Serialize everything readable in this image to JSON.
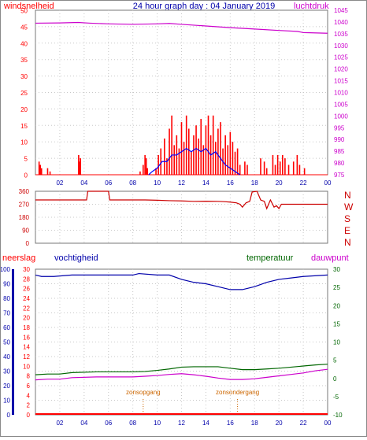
{
  "title": "24 hour graph day : 04 January 2019",
  "colors": {
    "wind": "#ff0000",
    "wind_gust": "#0000ff",
    "pressure": "#cc00cc",
    "direction": "#cc0000",
    "rain": "#ff0000",
    "humidity": "#0000aa",
    "temperature": "#006600",
    "dewpoint": "#cc00cc",
    "event": "#cc6600",
    "grid": "#c8c8c8"
  },
  "chart_data": [
    {
      "type": "bar",
      "title": "24 hour graph day : 04 January 2019",
      "ylabel_left": "windsnelheid",
      "ylabel_right": "luchtdruk",
      "xlim": [
        0,
        24
      ],
      "ylim_left": [
        0,
        50
      ],
      "ylim_right": [
        975,
        1045
      ],
      "x_ticks": [
        "02",
        "04",
        "06",
        "08",
        "10",
        "12",
        "14",
        "16",
        "18",
        "20",
        "22",
        "00"
      ],
      "y_ticks_left": [
        "0",
        "5",
        "10",
        "15",
        "20",
        "25",
        "30",
        "35",
        "40",
        "45",
        "50"
      ],
      "y_ticks_right": [
        "975",
        "980",
        "985",
        "990",
        "995",
        "1000",
        "1005",
        "1010",
        "1015",
        "1020",
        "1025",
        "1030",
        "1035",
        "1040",
        "1045"
      ],
      "series": [
        {
          "role": "windsnelheid",
          "kind": "bars",
          "points": [
            [
              0.3,
              4
            ],
            [
              0.4,
              3
            ],
            [
              0.5,
              2
            ],
            [
              1.0,
              2
            ],
            [
              1.2,
              1
            ],
            [
              3.55,
              6
            ],
            [
              3.6,
              4
            ],
            [
              3.65,
              2
            ],
            [
              3.7,
              5
            ],
            [
              8.6,
              1
            ],
            [
              8.85,
              3
            ],
            [
              9.0,
              6
            ],
            [
              9.1,
              5
            ],
            [
              9.2,
              2
            ],
            [
              9.9,
              2
            ],
            [
              10.1,
              6
            ],
            [
              10.3,
              8
            ],
            [
              10.6,
              11
            ],
            [
              10.8,
              5
            ],
            [
              11.0,
              14
            ],
            [
              11.2,
              18
            ],
            [
              11.4,
              9
            ],
            [
              11.6,
              12
            ],
            [
              11.8,
              8
            ],
            [
              12.0,
              16
            ],
            [
              12.2,
              10
            ],
            [
              12.4,
              18
            ],
            [
              12.6,
              14
            ],
            [
              12.8,
              7
            ],
            [
              13.0,
              12
            ],
            [
              13.2,
              15
            ],
            [
              13.4,
              11
            ],
            [
              13.6,
              17
            ],
            [
              13.8,
              9
            ],
            [
              14.0,
              15
            ],
            [
              14.2,
              18
            ],
            [
              14.4,
              12
            ],
            [
              14.6,
              18
            ],
            [
              14.8,
              10
            ],
            [
              15.0,
              14
            ],
            [
              15.2,
              16
            ],
            [
              15.4,
              8
            ],
            [
              15.6,
              12
            ],
            [
              15.8,
              9
            ],
            [
              16.0,
              13
            ],
            [
              16.2,
              10
            ],
            [
              16.4,
              7
            ],
            [
              16.6,
              8
            ],
            [
              16.8,
              3
            ],
            [
              17.2,
              4
            ],
            [
              17.4,
              3
            ],
            [
              18.5,
              5
            ],
            [
              18.8,
              4
            ],
            [
              19.0,
              2
            ],
            [
              19.5,
              6
            ],
            [
              19.7,
              3
            ],
            [
              19.9,
              6
            ],
            [
              20.1,
              4
            ],
            [
              20.3,
              6
            ],
            [
              20.5,
              5
            ],
            [
              20.8,
              3
            ],
            [
              21.2,
              4
            ],
            [
              21.5,
              6
            ],
            [
              21.7,
              3
            ],
            [
              22.1,
              2
            ]
          ]
        },
        {
          "role": "windstoot",
          "kind": "line",
          "points": [
            [
              9.3,
              0
            ],
            [
              9.6,
              1
            ],
            [
              10.0,
              2
            ],
            [
              10.4,
              4
            ],
            [
              10.8,
              4
            ],
            [
              11.2,
              6
            ],
            [
              11.6,
              6
            ],
            [
              12.0,
              7
            ],
            [
              12.4,
              8
            ],
            [
              12.8,
              7
            ],
            [
              13.2,
              8
            ],
            [
              13.6,
              7
            ],
            [
              14.0,
              8
            ],
            [
              14.4,
              6
            ],
            [
              14.8,
              7
            ],
            [
              15.2,
              5
            ],
            [
              15.6,
              3
            ],
            [
              16.0,
              2
            ],
            [
              16.4,
              1
            ],
            [
              16.8,
              0
            ]
          ]
        },
        {
          "role": "luchtdruk",
          "kind": "line",
          "axis": "right",
          "points": [
            [
              0,
              1039.5
            ],
            [
              2,
              1039.6
            ],
            [
              3.5,
              1039.8
            ],
            [
              4.5,
              1039.5
            ],
            [
              6,
              1039.2
            ],
            [
              8,
              1039.0
            ],
            [
              10,
              1039.2
            ],
            [
              11,
              1039.4
            ],
            [
              12,
              1039.0
            ],
            [
              14,
              1038.3
            ],
            [
              16,
              1037.6
            ],
            [
              18,
              1037.0
            ],
            [
              20,
              1036.4
            ],
            [
              21.5,
              1036.0
            ],
            [
              22,
              1035.5
            ],
            [
              24,
              1035.2
            ]
          ]
        }
      ]
    },
    {
      "type": "line",
      "y_ticks_left": [
        "0",
        "90",
        "180",
        "270",
        "360"
      ],
      "ylim_left": [
        0,
        360
      ],
      "xlim": [
        0,
        24
      ],
      "compass": [
        "N",
        "W",
        "S",
        "E",
        "N"
      ],
      "series": [
        {
          "role": "windrichting",
          "points": [
            [
              0,
              300
            ],
            [
              4,
              300
            ],
            [
              4.2,
              300
            ],
            [
              4.3,
              360
            ],
            [
              6,
              360
            ],
            [
              6.1,
              300
            ],
            [
              9,
              300
            ],
            [
              10,
              298
            ],
            [
              11,
              295
            ],
            [
              12,
              293
            ],
            [
              13,
              290
            ],
            [
              14,
              291
            ],
            [
              15,
              290
            ],
            [
              15.5,
              288
            ],
            [
              16,
              285
            ],
            [
              16.5,
              280
            ],
            [
              16.8,
              270
            ],
            [
              17.0,
              250
            ],
            [
              17.3,
              280
            ],
            [
              17.6,
              290
            ],
            [
              17.8,
              355
            ],
            [
              18.2,
              360
            ],
            [
              18.5,
              300
            ],
            [
              18.8,
              290
            ],
            [
              19.0,
              240
            ],
            [
              19.3,
              300
            ],
            [
              19.6,
              250
            ],
            [
              19.8,
              260
            ],
            [
              20.0,
              240
            ],
            [
              20.2,
              270
            ],
            [
              21,
              270
            ],
            [
              24,
              270
            ]
          ]
        }
      ]
    },
    {
      "type": "line",
      "ylabel_rain": "neerslag",
      "ylabel_humidity": "vochtigheid",
      "ylabel_temperature": "temperatuur",
      "ylabel_dewpoint": "dauwpunt",
      "xlim": [
        0,
        24
      ],
      "ylim_rain": [
        0,
        30
      ],
      "ylim_humidity": [
        0,
        100
      ],
      "ylim_temperature": [
        -10,
        30
      ],
      "x_ticks": [
        "02",
        "04",
        "06",
        "08",
        "10",
        "12",
        "14",
        "16",
        "18",
        "20",
        "22",
        "00"
      ],
      "y_ticks_rain": [
        "0",
        "2",
        "4",
        "6",
        "8",
        "10",
        "12",
        "14",
        "16",
        "18",
        "20",
        "22",
        "24",
        "26",
        "28",
        "30"
      ],
      "y_ticks_humidity": [
        "0",
        "10",
        "20",
        "30",
        "40",
        "50",
        "60",
        "70",
        "80",
        "90",
        "100"
      ],
      "y_ticks_temperature": [
        "-10",
        "-5",
        "0",
        "5",
        "10",
        "15",
        "20",
        "25",
        "30"
      ],
      "events": [
        {
          "label": "zonsopgang",
          "x": 8.85
        },
        {
          "label": "zonsondergang",
          "x": 16.6
        }
      ],
      "series": [
        {
          "role": "vochtigheid",
          "points": [
            [
              0,
              96
            ],
            [
              0.5,
              95
            ],
            [
              1.5,
              95
            ],
            [
              3,
              96
            ],
            [
              6,
              96
            ],
            [
              8,
              96
            ],
            [
              8.5,
              97
            ],
            [
              10,
              96
            ],
            [
              11,
              96
            ],
            [
              12,
              93
            ],
            [
              13,
              91
            ],
            [
              14,
              90
            ],
            [
              15,
              88
            ],
            [
              16,
              86
            ],
            [
              17,
              86
            ],
            [
              18,
              88
            ],
            [
              19,
              91
            ],
            [
              20,
              93
            ],
            [
              21,
              94
            ],
            [
              22,
              95
            ],
            [
              24,
              96
            ]
          ]
        },
        {
          "role": "temperatuur",
          "points": [
            [
              0,
              1.0
            ],
            [
              1,
              1.2
            ],
            [
              2,
              1.2
            ],
            [
              3,
              1.6
            ],
            [
              5,
              1.8
            ],
            [
              8,
              1.8
            ],
            [
              9,
              1.9
            ],
            [
              10,
              2.2
            ],
            [
              11,
              2.6
            ],
            [
              12,
              3.1
            ],
            [
              13,
              3.2
            ],
            [
              15,
              3.2
            ],
            [
              16,
              2.8
            ],
            [
              17,
              2.4
            ],
            [
              18,
              2.4
            ],
            [
              19,
              2.6
            ],
            [
              20,
              2.8
            ],
            [
              21,
              3.1
            ],
            [
              22,
              3.4
            ],
            [
              23,
              3.7
            ],
            [
              24,
              3.9
            ]
          ]
        },
        {
          "role": "dauwpunt",
          "points": [
            [
              0,
              -0.4
            ],
            [
              1,
              -0.2
            ],
            [
              2,
              -0.2
            ],
            [
              3,
              0.2
            ],
            [
              5,
              0.4
            ],
            [
              8,
              0.4
            ],
            [
              9,
              0.6
            ],
            [
              10,
              0.8
            ],
            [
              11,
              1.1
            ],
            [
              12,
              1.3
            ],
            [
              13,
              1.0
            ],
            [
              14,
              0.6
            ],
            [
              15,
              0.1
            ],
            [
              16,
              -0.3
            ],
            [
              17,
              -0.3
            ],
            [
              18,
              -0.1
            ],
            [
              19,
              0.3
            ],
            [
              20,
              0.7
            ],
            [
              21,
              1.1
            ],
            [
              22,
              1.5
            ],
            [
              23,
              2.1
            ],
            [
              24,
              2.5
            ]
          ]
        },
        {
          "role": "neerslag",
          "axis": "rain",
          "points": [
            [
              0,
              0
            ],
            [
              24,
              0
            ]
          ]
        }
      ]
    }
  ]
}
